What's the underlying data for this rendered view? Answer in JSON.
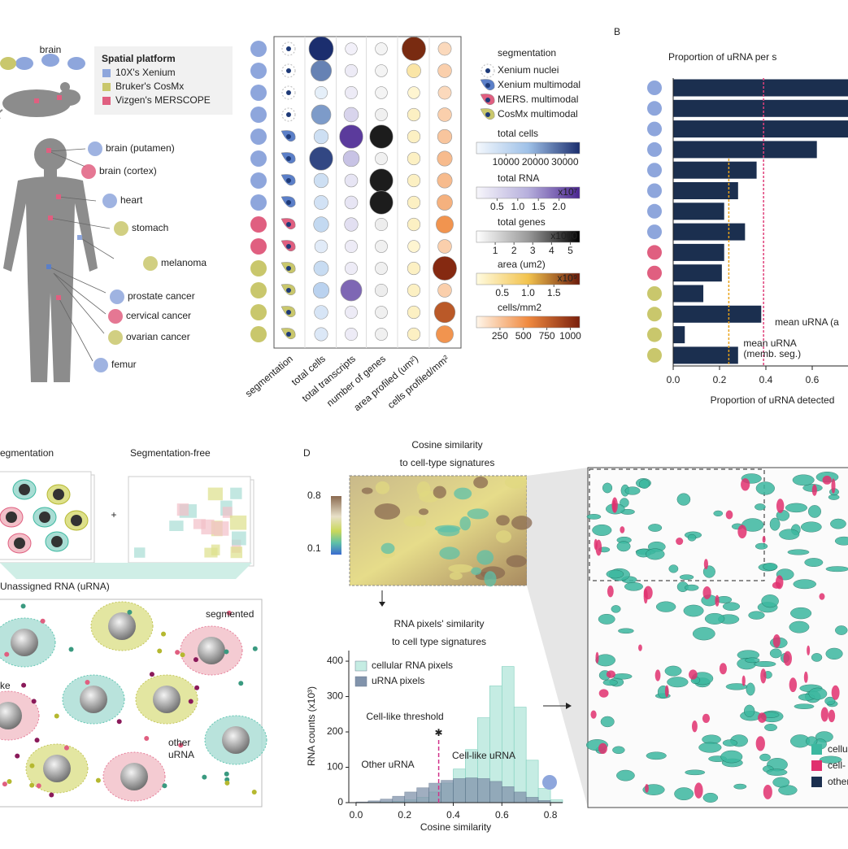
{
  "panel_a": {
    "label_mouse": "brain",
    "platform_legend": {
      "title": "Spatial platform",
      "items": [
        {
          "name": "10X's Xenium",
          "color": "#8ea6dc"
        },
        {
          "name": "Bruker's CosMx",
          "color": "#c9c76c"
        },
        {
          "name": "Vizgen's MERSCOPE",
          "color": "#e05f80"
        }
      ]
    },
    "organs": [
      "brain (putamen)",
      "brain (cortex)",
      "heart",
      "stomach",
      "melanoma",
      "prostate cancer",
      "cervical cancer",
      "ovarian cancer",
      "femur"
    ]
  },
  "chart_data": [
    {
      "type": "dotmatrix",
      "columns": [
        "segmentation",
        "total cells",
        "total transcripts",
        "number of genes",
        "area profiled (um²)",
        "cells profiled/mm²"
      ],
      "row_colors": [
        "#8ea6dc",
        "#8ea6dc",
        "#8ea6dc",
        "#8ea6dc",
        "#8ea6dc",
        "#8ea6dc",
        "#8ea6dc",
        "#8ea6dc",
        "#e05f80",
        "#e05f80",
        "#c9c76c",
        "#c9c76c",
        "#c9c76c",
        "#c9c76c"
      ],
      "row_segmentation": [
        "Xenium nuclei",
        "Xenium nuclei",
        "Xenium nuclei",
        "Xenium nuclei",
        "Xenium multimodal",
        "Xenium multimodal",
        "Xenium multimodal",
        "Xenium multimodal",
        "MERS. multimodal",
        "MERS. multimodal",
        "CosMx multimodal",
        "CosMx multimodal",
        "CosMx multimodal",
        "CosMx multimodal"
      ],
      "legend": {
        "title": "segmentation",
        "items": [
          {
            "name": "Xenium nuclei",
            "color": "#1e3a78"
          },
          {
            "name": "Xenium multimodal",
            "color": "#5b7fc8"
          },
          {
            "name": "MERS. multimodal",
            "color": "#e05f80"
          },
          {
            "name": "CosMx multimodal",
            "color": "#c9c76c"
          }
        ]
      },
      "series": [
        {
          "name": "total cells",
          "values": [
            35000,
            25000,
            3000,
            22000,
            8000,
            32000,
            8000,
            7000,
            10000,
            4000,
            9000,
            12000,
            6000,
            5000
          ],
          "lim": [
            0,
            35000
          ],
          "ticks": [
            10000,
            20000,
            30000
          ],
          "colors": [
            "#f4f8fd",
            "#9fc1e8",
            "#1b2e6e"
          ]
        },
        {
          "name": "total RNA",
          "unit": "x10⁷",
          "values": [
            0.1,
            0.2,
            0.2,
            0.6,
            2.3,
            0.9,
            0.3,
            0.3,
            0.4,
            0.2,
            0.2,
            1.9,
            0.2,
            0.2
          ],
          "lim": [
            0,
            2.5
          ],
          "ticks": [
            0.5,
            {
              "value": 1,
              "label": "1.0"
            },
            1.5,
            {
              "value": 2,
              "label": "2.0"
            }
          ],
          "colors": [
            "#f7f6fb",
            "#b6afdc",
            "#4a2590"
          ]
        },
        {
          "name": "total genes",
          "unit": "x1000",
          "values": [
            0.3,
            0.3,
            0.3,
            0.4,
            5,
            0.4,
            5,
            5,
            0.5,
            0.4,
            0.4,
            0.5,
            0.4,
            0.4
          ],
          "lim": [
            0,
            5.5
          ],
          "ticks": [
            1,
            2,
            3,
            4,
            5
          ],
          "colors": [
            "#ffffff",
            "#9a9a9a",
            "#000000"
          ]
        },
        {
          "name": "area (um2)",
          "unit": "x10⁹",
          "values": [
            1.9,
            0.4,
            0.1,
            0.2,
            0.2,
            0.2,
            0.2,
            0.2,
            0.2,
            0.1,
            0.2,
            0.2,
            0.2,
            0.2
          ],
          "lim": [
            0,
            2
          ],
          "ticks": [
            0.5,
            {
              "value": 1,
              "label": "1.0"
            },
            1.5
          ],
          "colors": [
            "#fffbe0",
            "#f2c34e",
            "#6b1a0a"
          ]
        },
        {
          "name": "cells/mm2",
          "values": [
            150,
            200,
            150,
            200,
            250,
            300,
            300,
            350,
            500,
            200,
            1050,
            200,
            800,
            500
          ],
          "lim": [
            0,
            1100
          ],
          "ticks": [
            250,
            500,
            750,
            1000
          ],
          "colors": [
            "#fff6ea",
            "#f08a40",
            "#7a1f0c"
          ]
        }
      ]
    },
    {
      "type": "barh",
      "label": "B",
      "title": "Proportion of uRNA per s",
      "categories": [
        null,
        null,
        null,
        null,
        null,
        null,
        null,
        null,
        null,
        null,
        null,
        null,
        null,
        null
      ],
      "values": [
        0.9,
        0.9,
        0.9,
        0.62,
        0.36,
        0.28,
        0.22,
        0.31,
        0.22,
        0.21,
        0.13,
        0.38,
        0.05,
        0.28
      ],
      "color": "#1b2f4f",
      "xlim": [
        0,
        1
      ],
      "xticks": [
        {
          "value": 0,
          "label": "0.0"
        },
        0.2,
        0.4,
        0.6
      ],
      "xlabel": "Proportion of uRNA detected",
      "reference_lines": [
        {
          "value": 0.39,
          "color": "#e0407a",
          "label": [
            "mean uRNA (a"
          ]
        },
        {
          "value": 0.24,
          "color": "#e8a21a",
          "label": [
            "mean uRNA",
            "(memb. seg.)"
          ]
        }
      ]
    },
    {
      "type": "histogram",
      "bins": [
        0,
        0.05,
        0.1,
        0.15,
        0.2,
        0.25,
        0.3,
        0.35,
        0.4,
        0.45,
        0.5,
        0.55,
        0.6,
        0.65,
        0.7,
        0.75,
        0.8,
        0.85
      ],
      "series": [
        {
          "name": "cellular RNA pixels",
          "color": "#c5ece3",
          "values": [
            0,
            1,
            2,
            4,
            8,
            15,
            30,
            55,
            95,
            150,
            240,
            330,
            385,
            270,
            120,
            40,
            8
          ]
        },
        {
          "name": "uRNA pixels",
          "color": "#8193ab",
          "values": [
            2,
            5,
            10,
            18,
            30,
            42,
            55,
            63,
            68,
            70,
            68,
            60,
            45,
            30,
            15,
            6,
            1
          ]
        }
      ],
      "xlim": [
        -0.03,
        0.85
      ],
      "ylim": [
        0,
        430
      ],
      "xticks": [
        {
          "value": 0,
          "label": "0.0"
        },
        0.2,
        0.4,
        0.6,
        0.8
      ],
      "yticks": [
        0,
        100,
        200,
        300,
        400
      ],
      "xlabel": "Cosine similarity",
      "ylabel": "RNA counts (x10³)",
      "legend": "upper left",
      "threshold": {
        "value": 0.34,
        "label": "Cell-like threshold",
        "color": "#d0308a"
      },
      "annotations": [
        "Other uRNA",
        "Cell-like uRNA"
      ]
    }
  ],
  "panel_c": {
    "title_left": "egmentation",
    "title_right": "Segmentation-free",
    "plus": "+",
    "subtitle": "Unassigned RNA (uRNA)",
    "labels": [
      "segmented",
      "ke",
      "other",
      "uRNA"
    ]
  },
  "panel_d": {
    "label": "D",
    "title": [
      "Cosine similarity",
      "to cell-type signatures"
    ],
    "colorbar": [
      "0.8",
      "0.1"
    ],
    "subtitle": [
      "RNA pixels' similarity",
      "to cell type signatures"
    ],
    "legend": [
      {
        "name": "cellu",
        "color": "#3cb8a0"
      },
      {
        "name": "cell-",
        "color": "#e0306e"
      },
      {
        "name": "other",
        "color": "#1b2f4f"
      }
    ]
  }
}
